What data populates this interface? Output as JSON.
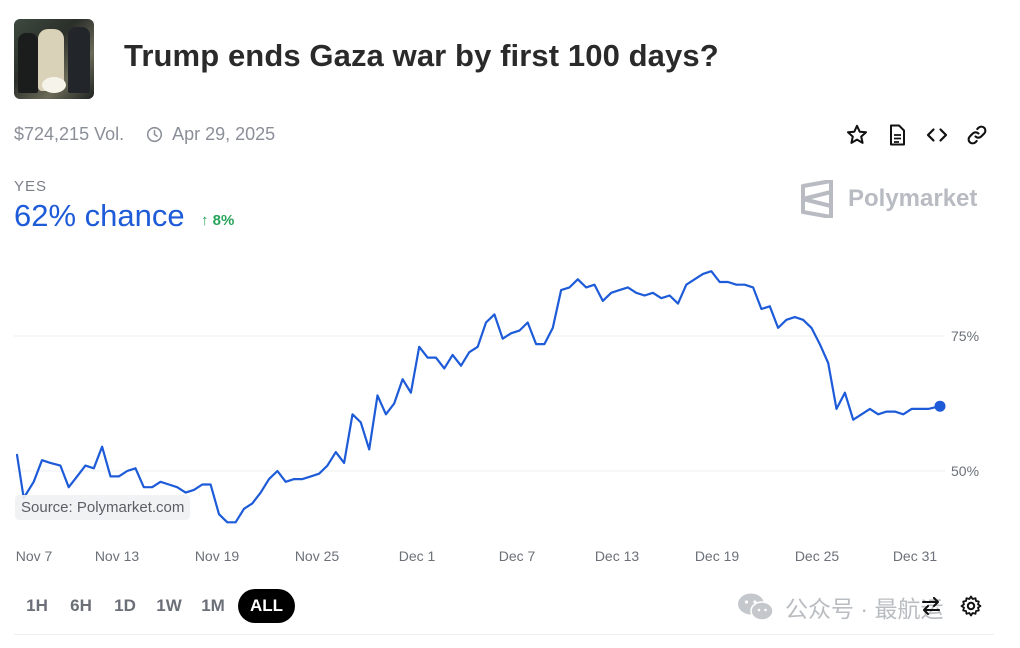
{
  "market": {
    "title": "Trump ends Gaza war by first 100 days?",
    "volume": "$724,215 Vol.",
    "end_date": "Apr 29, 2025",
    "outcome": "YES",
    "chance": "62% chance",
    "change": "↑ 8%",
    "brand": "Polymarket"
  },
  "actions": [
    {
      "name": "star-button",
      "icon": "star-icon"
    },
    {
      "name": "document-button",
      "icon": "document-icon"
    },
    {
      "name": "embed-button",
      "icon": "code-icon"
    },
    {
      "name": "link-button",
      "icon": "link-icon"
    }
  ],
  "source_label": "Source: Polymarket.com",
  "ranges": [
    "1H",
    "6H",
    "1D",
    "1W",
    "1M",
    "ALL"
  ],
  "active_range": "ALL",
  "watermark": "公众号 · 最航运",
  "colors": {
    "line": "#1d5bd8",
    "up": "#27a35a",
    "accent": "#1d5bd8"
  },
  "chart_data": {
    "type": "line",
    "title": "",
    "xlabel": "",
    "ylabel": "",
    "x_ticks": [
      "Nov 7",
      "Nov 13",
      "Nov 19",
      "Nov 25",
      "Dec 1",
      "Dec 7",
      "Dec 13",
      "Dec 19",
      "Dec 25",
      "Dec 31"
    ],
    "y_ticks": [
      "75%",
      "50%"
    ],
    "y_tick_values": [
      75,
      50
    ],
    "x_range": [
      0,
      55.3
    ],
    "ylim": [
      38,
      88
    ],
    "grid": true,
    "series": [
      {
        "values": [
          [
            0,
            53
          ],
          [
            0.4,
            45
          ],
          [
            1.0,
            48
          ],
          [
            1.5,
            52
          ],
          [
            2.0,
            51.5
          ],
          [
            2.6,
            51
          ],
          [
            3.1,
            47
          ],
          [
            3.6,
            49
          ],
          [
            4.1,
            51
          ],
          [
            4.6,
            50.5
          ],
          [
            5.1,
            54.5
          ],
          [
            5.6,
            49
          ],
          [
            6.1,
            49
          ],
          [
            6.6,
            50
          ],
          [
            7.1,
            50.5
          ],
          [
            7.6,
            47
          ],
          [
            8.1,
            47
          ],
          [
            8.6,
            48
          ],
          [
            9.1,
            47.5
          ],
          [
            9.6,
            47
          ],
          [
            10.1,
            46
          ],
          [
            10.6,
            46.5
          ],
          [
            11.1,
            47.5
          ],
          [
            11.6,
            47.5
          ],
          [
            12.1,
            42
          ],
          [
            12.6,
            40.5
          ],
          [
            13.1,
            40.5
          ],
          [
            13.6,
            43
          ],
          [
            14.1,
            44
          ],
          [
            14.6,
            46
          ],
          [
            15.1,
            48.5
          ],
          [
            15.6,
            50
          ],
          [
            16.1,
            48
          ],
          [
            16.6,
            48.5
          ],
          [
            17.1,
            48.5
          ],
          [
            17.6,
            49
          ],
          [
            18.1,
            49.5
          ],
          [
            18.6,
            51
          ],
          [
            19.1,
            53.5
          ],
          [
            19.6,
            51.5
          ],
          [
            20.1,
            60.5
          ],
          [
            20.6,
            59
          ],
          [
            21.1,
            54
          ],
          [
            21.6,
            64
          ],
          [
            22.1,
            60.5
          ],
          [
            22.6,
            62.5
          ],
          [
            23.1,
            67
          ],
          [
            23.6,
            64.5
          ],
          [
            24.1,
            73
          ],
          [
            24.6,
            71
          ],
          [
            25.1,
            71
          ],
          [
            25.6,
            69
          ],
          [
            26.1,
            71.5
          ],
          [
            26.6,
            69.5
          ],
          [
            27.1,
            72
          ],
          [
            27.6,
            73
          ],
          [
            28.1,
            77.5
          ],
          [
            28.6,
            79
          ],
          [
            29.1,
            74.5
          ],
          [
            29.6,
            75.5
          ],
          [
            30.1,
            76
          ],
          [
            30.6,
            77.5
          ],
          [
            31.1,
            73.5
          ],
          [
            31.6,
            73.5
          ],
          [
            32.1,
            76.5
          ],
          [
            32.6,
            83.5
          ],
          [
            33.1,
            84
          ],
          [
            33.6,
            85.5
          ],
          [
            34.1,
            84
          ],
          [
            34.6,
            84.5
          ],
          [
            35.1,
            81.5
          ],
          [
            35.6,
            83
          ],
          [
            36.1,
            83.5
          ],
          [
            36.6,
            84
          ],
          [
            37.1,
            83
          ],
          [
            37.6,
            82.5
          ],
          [
            38.1,
            83
          ],
          [
            38.6,
            82
          ],
          [
            39.1,
            82.5
          ],
          [
            39.6,
            81
          ],
          [
            40.1,
            84.5
          ],
          [
            40.6,
            85.5
          ],
          [
            41.1,
            86.5
          ],
          [
            41.6,
            87
          ],
          [
            42.1,
            85
          ],
          [
            42.6,
            85
          ],
          [
            43.1,
            84.5
          ],
          [
            43.6,
            84.5
          ],
          [
            44.1,
            84
          ],
          [
            44.6,
            80
          ],
          [
            45.1,
            80.5
          ],
          [
            45.6,
            76.5
          ],
          [
            46.1,
            78
          ],
          [
            46.6,
            78.5
          ],
          [
            47.1,
            78
          ],
          [
            47.6,
            76.5
          ],
          [
            48.1,
            73.5
          ],
          [
            48.6,
            70
          ],
          [
            49.1,
            61.5
          ],
          [
            49.6,
            64.5
          ],
          [
            50.1,
            59.5
          ],
          [
            50.6,
            60.5
          ],
          [
            51.1,
            61.5
          ],
          [
            51.6,
            60.5
          ],
          [
            52.1,
            61
          ],
          [
            52.6,
            61
          ],
          [
            53.1,
            60.5
          ],
          [
            53.6,
            61.5
          ],
          [
            54.1,
            61.5
          ],
          [
            54.6,
            61.5
          ],
          [
            55.3,
            62
          ]
        ]
      }
    ]
  }
}
